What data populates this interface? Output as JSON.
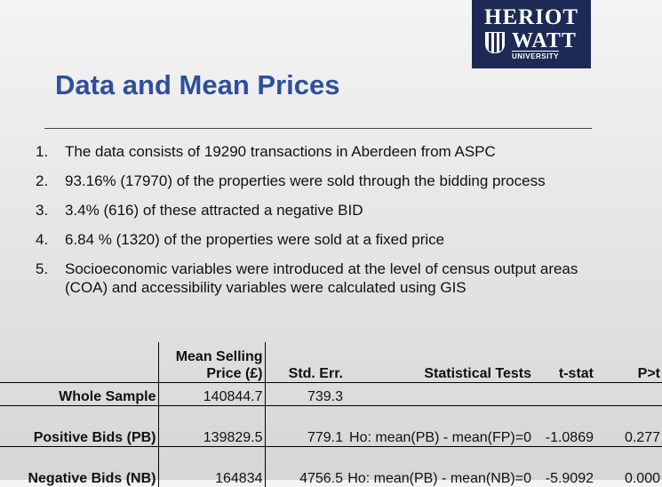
{
  "header": {
    "logo": [
      "HERIOT",
      "WATT",
      "UNIVERSITY"
    ]
  },
  "title": "Data and Mean Prices",
  "list": [
    {
      "number": "1.",
      "text": "The data consists of 19290 transactions in Aberdeen from ASPC"
    },
    {
      "number": "2.",
      "text": "93.16% (17970) of the properties were sold through the bidding process"
    },
    {
      "number": "3.",
      "text": "3.4% (616) of these attracted a negative BID"
    },
    {
      "number": "4.",
      "text": "6.84 % (1320) of the properties were sold at a fixed price"
    },
    {
      "number": "5.",
      "text": "Socioeconomic variables were introduced at the level of census output areas (COA) and accessibility variables were calculated using GIS"
    }
  ],
  "table": {
    "header": [
      "Mean Selling Price (£)",
      "Std. Err.",
      "Statistical Tests",
      "t-stat",
      "P>t"
    ],
    "rows": [
      {
        "label": "Whole Sample",
        "mean": "140844.7",
        "std_err": "739.3"
      },
      {
        "label": "Positive Bids (PB)",
        "mean": "139829.5",
        "std_err": "779.1",
        "test": "Ho: mean(PB) - mean(FP)=0",
        "t_stat": "-1.0869",
        "p": "0.277"
      },
      {
        "label": "Negative Bids (NB)",
        "mean": "164834",
        "std_err": "4756.5",
        "test": "Ho: mean(PB) - mean(NB)=0",
        "t_stat": "-5.9092",
        "p": "0.000"
      }
    ]
  }
}
